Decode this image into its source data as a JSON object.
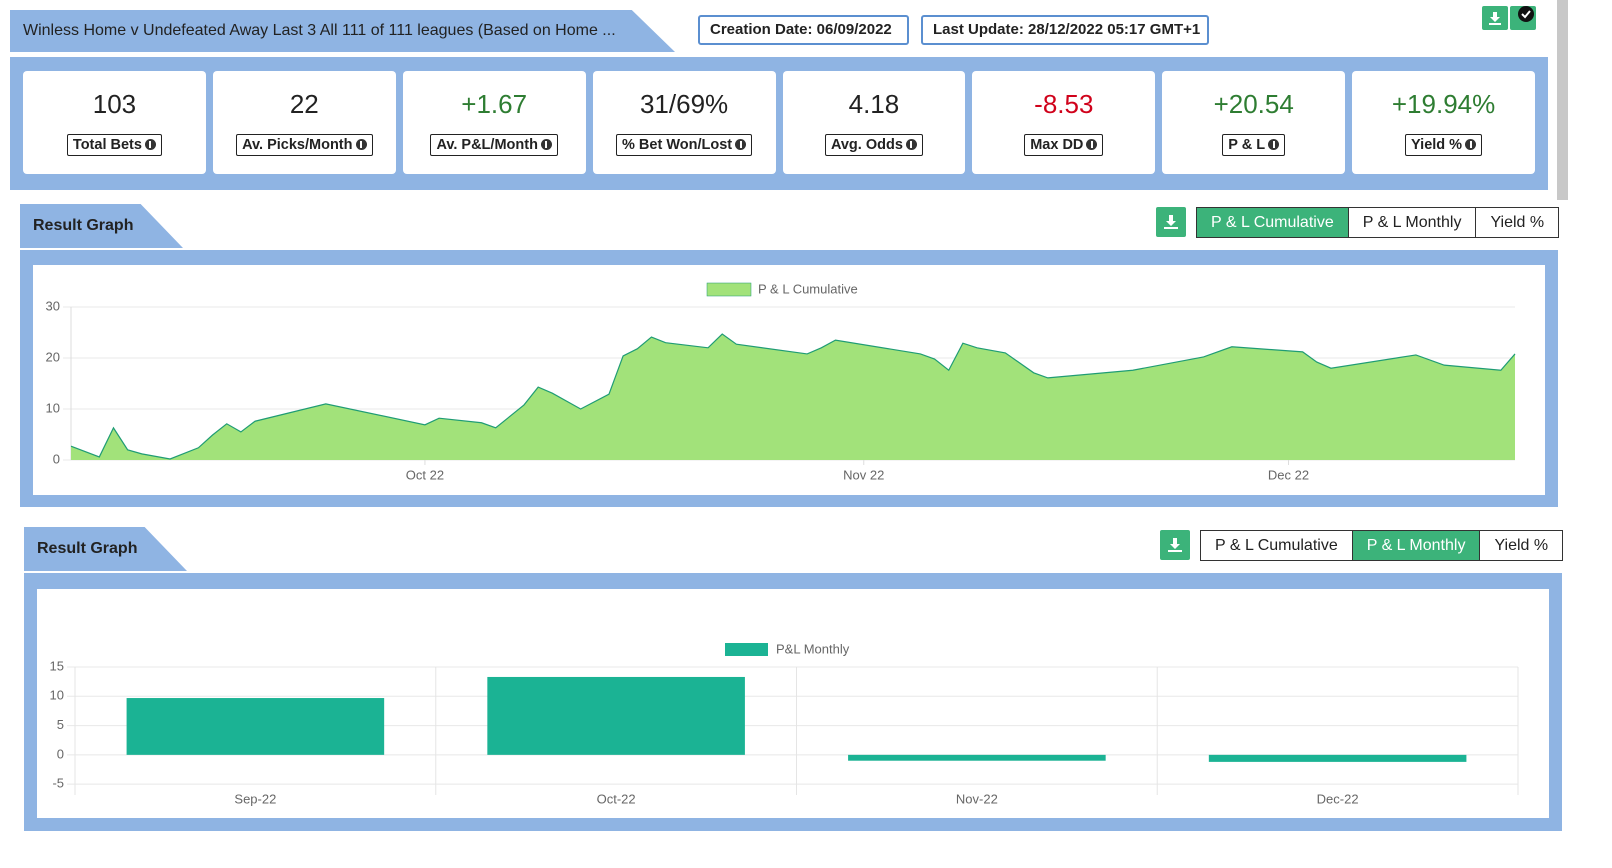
{
  "header": {
    "title": "Winless Home v Undefeated Away Last 3 All 111 of 111 leagues (Based on Home ...",
    "creation_date": "Creation Date: 06/09/2022",
    "last_update": "Last Update: 28/12/2022 05:17 GMT+1"
  },
  "stats": [
    {
      "value": "103",
      "label": "Total Bets",
      "color": "#222222"
    },
    {
      "value": "22",
      "label": "Av. Picks/Month",
      "color": "#222222"
    },
    {
      "value": "+1.67",
      "label": "Av. P&L/Month",
      "color": "#2e7d32"
    },
    {
      "value": "31/69%",
      "label": "% Bet Won/Lost",
      "color": "#222222"
    },
    {
      "value": "4.18",
      "label": "Avg. Odds",
      "color": "#222222"
    },
    {
      "value": "-8.53",
      "label": "Max DD",
      "color": "#d0021b"
    },
    {
      "value": "+20.54",
      "label": "P & L",
      "color": "#2e7d32"
    },
    {
      "value": "+19.94%",
      "label": "Yield %",
      "color": "#2e7d32"
    }
  ],
  "sections": [
    {
      "title": "Result Graph",
      "tabs": [
        "P & L Cumulative",
        "P & L Monthly",
        "Yield %"
      ],
      "active": 0
    },
    {
      "title": "Result Graph",
      "tabs": [
        "P & L Cumulative",
        "P & L Monthly",
        "Yield %"
      ],
      "active": 1
    }
  ],
  "chart_data": [
    {
      "type": "area",
      "series_name": "P & L Cumulative",
      "color": "#1f9c74",
      "fill": "#a2e27a",
      "x": [
        5,
        7,
        8,
        9,
        10,
        12,
        14,
        15,
        16,
        17,
        18,
        23,
        30,
        31,
        34,
        35,
        37,
        38,
        39,
        41,
        43,
        44,
        45,
        46,
        47,
        50,
        51,
        52,
        57,
        58,
        59,
        65,
        66,
        67,
        68,
        69,
        71,
        73,
        74,
        80,
        85,
        87,
        92,
        93,
        94,
        100,
        102,
        106,
        107
      ],
      "values": [
        2.7,
        0.6,
        6.3,
        2,
        1.2,
        0.2,
        2.4,
        4.9,
        7.1,
        5.5,
        7.6,
        11,
        6.9,
        8.2,
        7.3,
        6.3,
        10.8,
        14.3,
        13.1,
        10,
        12.9,
        20.4,
        21.8,
        24.1,
        23,
        22,
        24.7,
        22.7,
        20.8,
        22,
        23.5,
        20.8,
        19.8,
        17.6,
        22.9,
        22,
        21,
        17.1,
        16.1,
        17.6,
        20.2,
        22.2,
        21.2,
        19.2,
        18,
        20.6,
        18.6,
        17.6,
        20.8
      ],
      "xlim": [
        5,
        107
      ],
      "xticks": [
        {
          "value": 30,
          "label": "Oct 22"
        },
        {
          "value": 61,
          "label": "Nov 22"
        },
        {
          "value": 91,
          "label": "Dec 22"
        }
      ],
      "ylim": [
        0,
        30
      ],
      "yticks": [
        0,
        10,
        20,
        30
      ],
      "grid": true
    },
    {
      "type": "bar",
      "series_name": "P&L Monthly",
      "color": "#1bb394",
      "categories": [
        "Sep-22",
        "Oct-22",
        "Nov-22",
        "Dec-22"
      ],
      "values": [
        9.7,
        13.3,
        -1,
        -1.2
      ],
      "ylim": [
        -6,
        15
      ],
      "yticks": [
        -5,
        0,
        5,
        10,
        15
      ],
      "grid": true
    }
  ]
}
